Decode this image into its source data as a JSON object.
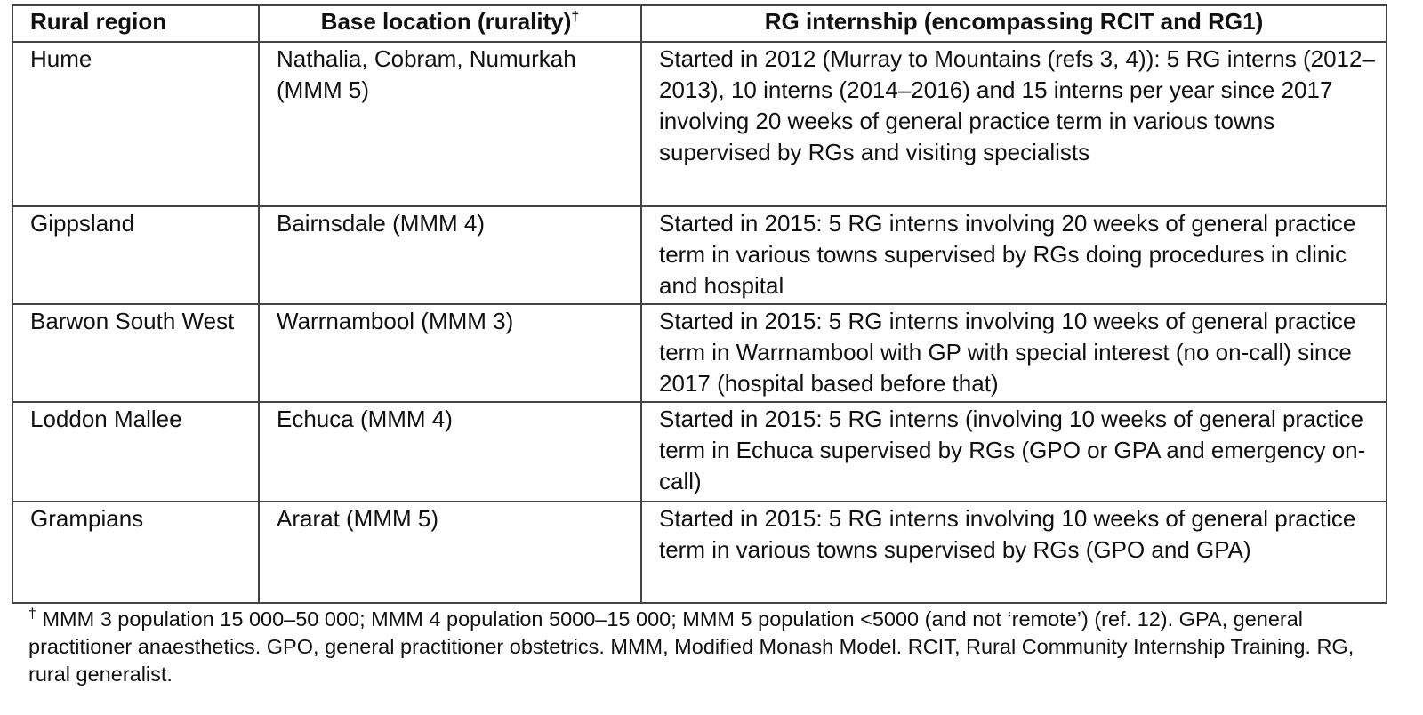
{
  "table": {
    "header": [
      "Rural region",
      {
        "text": "Base location (rurality)",
        "sup": "†"
      },
      "RG internship (encompassing RCIT and RG1)"
    ],
    "rows": [
      [
        "Hume",
        "Nathalia, Cobram, Numurkah (MMM 5)",
        "Started in 2012 (Murray to Mountains (refs 3, 4)): 5 RG interns (2012–2013), 10 interns (2014–2016) and 15 interns per year since 2017 involving 20 weeks of general practice term in various towns supervised by RGs and visiting specialists"
      ],
      [
        "Gippsland",
        "Bairnsdale (MMM 4)",
        "Started in 2015: 5 RG interns involving 20 weeks of general practice term in various towns supervised by RGs doing procedures in clinic and hospital"
      ],
      [
        "Barwon South West",
        "Warrnambool (MMM 3)",
        "Started in 2015: 5 RG interns involving 10 weeks of general practice term in Warrnambool with GP with special interest (no on-call) since 2017 (hospital based before that)"
      ],
      [
        "Loddon Mallee",
        "Echuca (MMM 4)",
        "Started in 2015: 5 RG interns (involving 10 weeks of general practice term in Echuca supervised by RGs (GPO or GPA and emergency on-call)"
      ],
      [
        "Grampians",
        "Ararat (MMM 5)",
        "Started in 2015: 5 RG interns involving 10 weeks of general practice term in various towns supervised by RGs (GPO and GPA)"
      ]
    ]
  },
  "footnote": {
    "mark": "†",
    "text": "MMM 3 population 15 000–50 000; MMM 4 population 5000–15 000; MMM 5 population <5000 (and not ‘remote’) (ref. 12). GPA, general practitioner anaesthetics. GPO, general practitioner obstetrics. MMM, Modified Monash Model. RCIT, Rural Community Internship Training. RG, rural generalist."
  }
}
